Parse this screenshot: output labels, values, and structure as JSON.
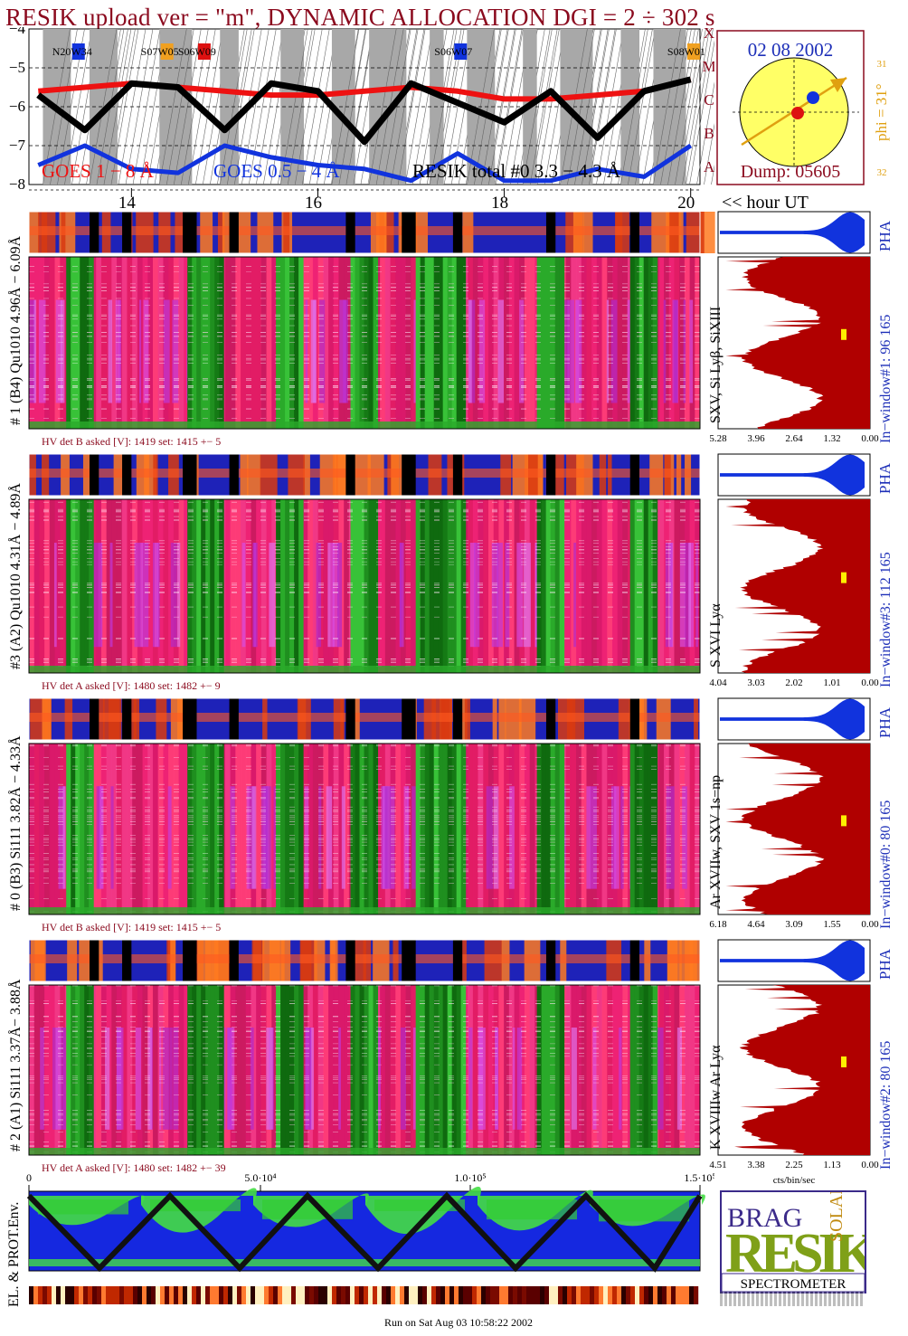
{
  "title": "RESIK upload ver = \"m\", DYNAMIC ALLOCATION  DGI =   2 ÷ 302 s",
  "goes_panel": {
    "yticks": [
      "−4",
      "−5",
      "−6",
      "−7",
      "−8"
    ],
    "class_letters": [
      "X",
      "M",
      "C",
      "B",
      "A"
    ],
    "region_labels": [
      "N20W34",
      "S07W05",
      "S06W09",
      "S06W07",
      "S08W01"
    ],
    "legend_goes_long": "GOES 1 − 8 Å",
    "legend_goes_short": "GOES 0.5 − 4 Å",
    "legend_resik": "RESIK total #0  3.3 − 4.3 Å",
    "colors": {
      "goes_long": "#ee1111",
      "goes_short": "#1133dd",
      "resik": "#000000"
    }
  },
  "sun_panel": {
    "date": "02 08 2002",
    "phi": "phi = 31°",
    "phi_top": "31",
    "phi_bottom": "32",
    "dump": "Dump: 05605"
  },
  "time_axis": {
    "ticks": [
      "14",
      "16",
      "18",
      "20"
    ],
    "unit_label": "<< hour UT"
  },
  "channels": [
    {
      "side_label": "# 1 (B4) Qu1010 4.96Å − 6.09Å",
      "hv": "HV det B asked [V]:  1419 set:  1415  +−   5",
      "lines": "SXV, Si Lyβ, SiXIII",
      "window": "In−window#1:   96 165",
      "pha": "PHA",
      "xticks": [
        "5.28",
        "3.96",
        "2.64",
        "1.32",
        "0.00"
      ]
    },
    {
      "side_label": "#3 (A2) Qu1010  4.31Å − 4.89Å",
      "hv": "HV det A asked [V]:  1480 set:  1482  +−   9",
      "lines": "S XVI Lyα",
      "window": "In−window#3:  112 165",
      "pha": "PHA",
      "xticks": [
        "4.04",
        "3.03",
        "2.02",
        "1.01",
        "0.00"
      ]
    },
    {
      "side_label": "# 0 (B3) Si111  3.82Å − 4.33Å",
      "hv": "HV det B asked [V]:  1419 set:  1415  +−   5",
      "lines": "Ar XVIIw,  SXV 1s−np",
      "window": "In−window#0:   80 165",
      "pha": "PHA",
      "xticks": [
        "6.18",
        "4.64",
        "3.09",
        "1.55",
        "0.00"
      ]
    },
    {
      "side_label": "# 2 (A1) Si111  3.37Å− 3.88Å",
      "hv": "HV det A asked [V]:  1480 set:  1482 +− 39",
      "lines": "K XVIIIw  Ar Lyα",
      "window": "In−window#2:   80 165",
      "pha": "PHA",
      "xticks": [
        "4.51",
        "3.38",
        "2.25",
        "1.13",
        "0.00"
      ]
    }
  ],
  "cts_label": "cts/bin/sec",
  "env_panel": {
    "side_label": "EL. & PROT.Env.",
    "xticks": [
      "0",
      "5.0·10⁴",
      "1.0·10⁵",
      "1.5·10⁵"
    ]
  },
  "logo": {
    "letters": "RESIK",
    "top_letters": "BRAG",
    "right_letters": "SOLAR",
    "banner": "SPECTROMETER"
  },
  "footer": "Run on Sat Aug 03 10:58:22 2002",
  "chart_data": {
    "type": "line",
    "title": "RESIK upload ver = \"m\", DYNAMIC ALLOCATION  DGI =   2 ÷ 302 s",
    "xlabel": "<< hour UT",
    "ylabel": "",
    "x": [
      13.0,
      13.5,
      14.0,
      14.5,
      15.0,
      15.5,
      16.0,
      16.5,
      17.0,
      17.5,
      18.0,
      18.5,
      19.0,
      19.5,
      20.0
    ],
    "xlim": [
      12.9,
      20.1
    ],
    "ylim": [
      -8,
      -4
    ],
    "series": [
      {
        "name": "GOES 1 − 8 Å",
        "values": [
          -5.6,
          -5.5,
          -5.4,
          -5.5,
          -5.6,
          -5.7,
          -5.7,
          -5.6,
          -5.5,
          -5.6,
          -5.8,
          -5.8,
          -5.7,
          -5.6,
          -5.3
        ]
      },
      {
        "name": "GOES 0.5 − 4 Å",
        "values": [
          -7.5,
          -7.0,
          -7.6,
          -7.7,
          -7.0,
          -7.3,
          -7.5,
          -7.6,
          -7.9,
          -7.2,
          -7.9,
          -7.9,
          -7.6,
          -7.8,
          -7.0
        ]
      },
      {
        "name": "RESIK total #0  3.3 − 4.3 Å",
        "values": [
          -5.7,
          -6.6,
          -5.4,
          -5.5,
          -6.6,
          -5.4,
          -5.6,
          -6.9,
          -5.4,
          -5.9,
          -6.4,
          -5.6,
          -6.8,
          -5.6,
          -5.3
        ]
      }
    ]
  }
}
